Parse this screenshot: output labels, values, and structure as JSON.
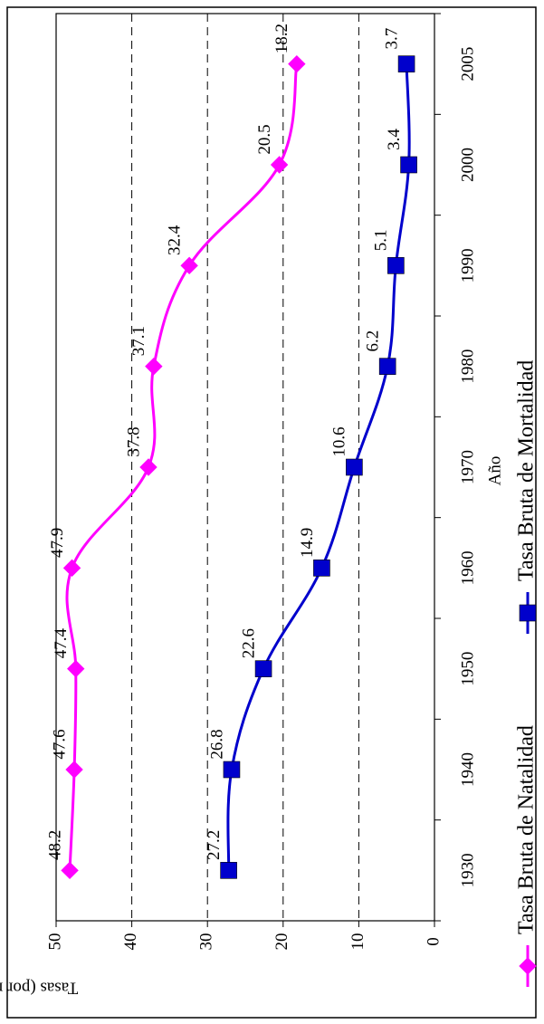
{
  "chart_data": {
    "type": "line",
    "orientation": "rotated-90-clockwise",
    "xlabel": "Año",
    "ylabel": "Tasas (por mil)",
    "x_ticks": [
      "1930",
      "1940",
      "1950",
      "1960",
      "1970",
      "1980",
      "1990",
      "2000",
      "2005"
    ],
    "y_ticks": [
      "0",
      "10",
      "20",
      "30",
      "40",
      "50"
    ],
    "ylim": [
      0,
      50
    ],
    "grid": "dashed horizontal at 10, 20, 30, 40",
    "legend_position": "bottom",
    "series": [
      {
        "name": "Tasa Bruta de Natalidad",
        "color": "#ff00ff",
        "marker": "diamond",
        "x": [
          "1930",
          "1940",
          "1950",
          "1960",
          "1970",
          "1980",
          "1990",
          "2000",
          "2005"
        ],
        "values": [
          48.2,
          47.6,
          47.4,
          47.9,
          37.8,
          37.1,
          32.4,
          20.5,
          18.2
        ],
        "labels": [
          "48.2",
          "47.6",
          "47.4",
          "47.9",
          "37.8",
          "37.1",
          "32.4",
          "20.5",
          "18.2"
        ]
      },
      {
        "name": "Tasa Bruta de Mortalidad",
        "color": "#0000cc",
        "marker": "square",
        "x": [
          "1930",
          "1940",
          "1950",
          "1960",
          "1970",
          "1980",
          "1990",
          "2000",
          "2005"
        ],
        "values": [
          27.2,
          26.8,
          22.6,
          14.9,
          10.6,
          6.2,
          5.1,
          3.4,
          3.7
        ],
        "labels": [
          "27.2",
          "26.8",
          "22.6",
          "14.9",
          "10.6",
          "6.2",
          "5.1",
          "3.4",
          "3.7"
        ]
      }
    ]
  }
}
